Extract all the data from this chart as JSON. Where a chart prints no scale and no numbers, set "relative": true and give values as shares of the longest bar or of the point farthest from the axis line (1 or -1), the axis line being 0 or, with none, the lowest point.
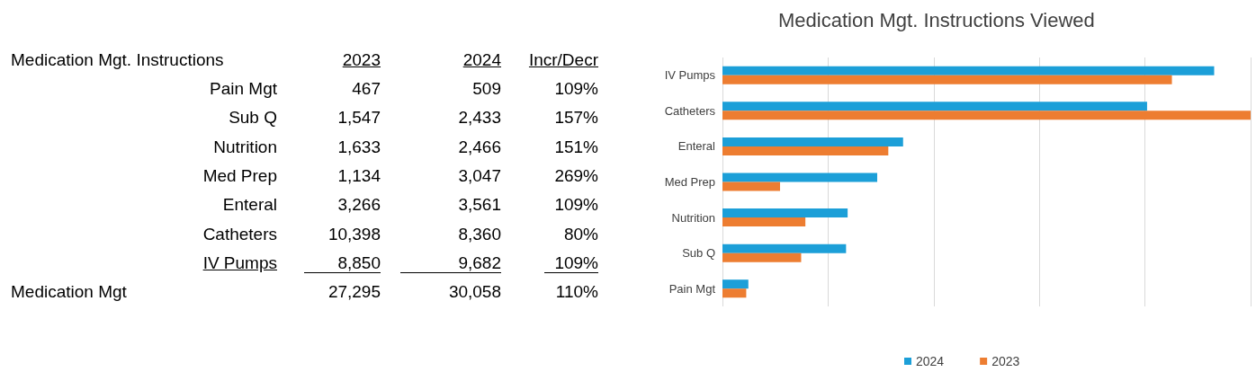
{
  "chart_data": [
    {
      "type": "other",
      "title": "Medication Mgt. Instructions",
      "categories": [
        "Pain Mgt",
        "Sub Q",
        "Nutrition",
        "Med Prep",
        "Enteral",
        "Catheters",
        "IV Pumps",
        "Medication Mgt"
      ],
      "series": [
        {
          "name": "2023",
          "values": [
            467,
            1547,
            1633,
            1134,
            3266,
            10398,
            8850,
            27295
          ],
          "value_labels": [
            "467",
            "1,547",
            "1,633",
            "1,134",
            "3,266",
            "10,398",
            "8,850",
            "27,295"
          ]
        },
        {
          "name": "2024",
          "values": [
            509,
            2433,
            2466,
            3047,
            3561,
            8360,
            9682,
            30058
          ],
          "value_labels": [
            "509",
            "2,433",
            "2,466",
            "3,047",
            "3,561",
            "8,360",
            "9,682",
            "30,058"
          ]
        },
        {
          "name": "Incr/Decr",
          "values": [
            109,
            157,
            151,
            269,
            109,
            80,
            109,
            110
          ],
          "value_labels": [
            "109%",
            "157%",
            "151%",
            "269%",
            "109%",
            "80%",
            "109%",
            "110%"
          ]
        }
      ]
    },
    {
      "type": "bar",
      "orientation": "horizontal",
      "relative": true,
      "title": "Medication Mgt. Instructions Viewed",
      "categories": [
        "IV Pumps",
        "Catheters",
        "Enteral",
        "Med Prep",
        "Nutrition",
        "Sub Q",
        "Pain Mgt"
      ],
      "series": [
        {
          "name": "2024",
          "color": "#1c9fd8",
          "values": [
            0.931,
            0.804,
            0.342,
            0.293,
            0.237,
            0.234,
            0.049
          ]
        },
        {
          "name": "2023",
          "color": "#ed7d31",
          "values": [
            0.851,
            1,
            0.314,
            0.109,
            0.157,
            0.149,
            0.045
          ]
        }
      ],
      "grid": "x",
      "legend": "bottom"
    }
  ]
}
